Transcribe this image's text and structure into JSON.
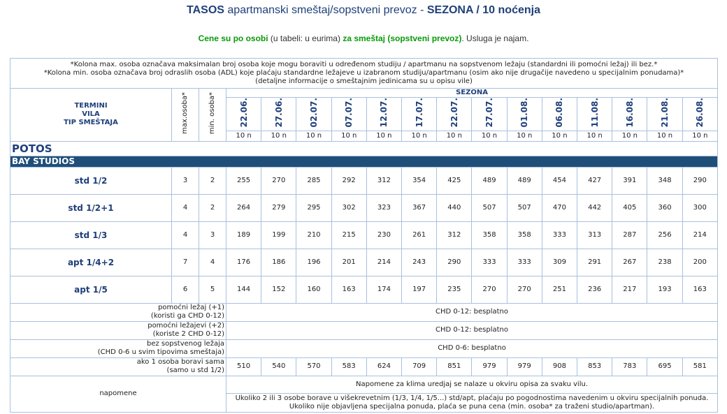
{
  "header": {
    "title_bold": "TASOS",
    "title_rest": "apartmanski smeštaj/sopstveni prevoz -",
    "title_season": "SEZONA / 10 noćenja"
  },
  "subtitle": {
    "part1": "Cene su po osobi",
    "part2": "(u tabeli: u eurima)",
    "part3": "za smeštaj (sopstveni prevoz)",
    "part4": ". Usluga je najam."
  },
  "table": {
    "notes": [
      "*Kolona max. osoba označava maksimalan broj osoba koje mogu boraviti u određenom studiju / apartmanu na sopstvenom ležaju (standardni ili pomoćni ležaj) ili bez.*",
      "*Kolona min. osoba označava broj odraslih osoba (ADL) koje plaćaju standardne ležajeve u izabranom studiju/apartmanu (osim ako nije drugačije navedeno u specijalnim ponudama)*",
      "(detaljne informacije o smeštajnim jedinicama su u opisu vile)"
    ],
    "head": {
      "labels": [
        "TERMINI",
        "VILA",
        "TIP SMEŠTAJA"
      ],
      "max": "max.osoba*",
      "min": "min. osoba*",
      "season": "SEZONA",
      "dates": [
        "22.06.",
        "27.06.",
        "02.07.",
        "07.07.",
        "12.07.",
        "17.07.",
        "22.07.",
        "27.07.",
        "01.08.",
        "06.08.",
        "11.08.",
        "16.08.",
        "21.08.",
        "26.08."
      ],
      "nights": [
        "10 n",
        "10 n",
        "10 n",
        "10 n",
        "10 n",
        "10 n",
        "10 n",
        "10 n",
        "10 n",
        "10 n",
        "10 n",
        "10 n",
        "10 n",
        "10 n"
      ]
    },
    "location": "POTOS",
    "section": "BAY STUDIOS",
    "rows": [
      {
        "type": "std 1/2",
        "max": 3,
        "min": 2,
        "prices": [
          255,
          270,
          285,
          292,
          312,
          354,
          425,
          489,
          489,
          454,
          427,
          391,
          348,
          290
        ]
      },
      {
        "type": "std 1/2+1",
        "max": 4,
        "min": 2,
        "prices": [
          264,
          279,
          295,
          302,
          323,
          367,
          440,
          507,
          507,
          470,
          442,
          405,
          360,
          300
        ]
      },
      {
        "type": "std 1/3",
        "max": 4,
        "min": 3,
        "prices": [
          189,
          199,
          210,
          215,
          230,
          261,
          312,
          358,
          358,
          333,
          313,
          287,
          256,
          214
        ]
      },
      {
        "type": "apt 1/4+2",
        "max": 7,
        "min": 4,
        "prices": [
          176,
          186,
          196,
          201,
          214,
          243,
          290,
          333,
          333,
          309,
          291,
          267,
          238,
          200
        ]
      },
      {
        "type": "apt 1/5",
        "max": 6,
        "min": 5,
        "prices": [
          144,
          152,
          160,
          163,
          174,
          197,
          235,
          270,
          270,
          251,
          236,
          217,
          193,
          163
        ]
      }
    ],
    "extras": [
      {
        "label": [
          "pomoćni ležaj (+1)",
          "(koristi ga CHD 0-12)"
        ],
        "text": "CHD 0-12: besplatno"
      },
      {
        "label": [
          "pomoćni ležajevi (+2)",
          "(koriste 2 CHD 0-12)"
        ],
        "text": "CHD 0-12: besplatno"
      },
      {
        "label": [
          "bez sopstvenog ležaja",
          "(CHD 0-6 u svim tipovima smeštaja)"
        ],
        "text": "CHD 0-6: besplatno"
      }
    ],
    "single": {
      "label": [
        "ako 1 osoba boravi sama",
        "(samo u std 1/2)"
      ],
      "prices": [
        510,
        540,
        570,
        583,
        624,
        709,
        851,
        979,
        979,
        908,
        853,
        783,
        695,
        581
      ]
    },
    "remarks": {
      "label": "napomene",
      "rows": [
        [
          "Napomene za klima uredjaj se nalaze u okviru opisa za svaku vilu."
        ],
        [
          "Ukoliko 2 ili 3 osobe borave u višekrevetnim (1/3, 1/4, 1/5...) std/apt, plaćaju po pogodnostima navedenim u okviru specijalnih ponuda.",
          "Ukoliko nije objavljena specijalna ponuda, plaća se puna cena (min. osoba* za traženi studio/apartman)."
        ]
      ]
    }
  }
}
